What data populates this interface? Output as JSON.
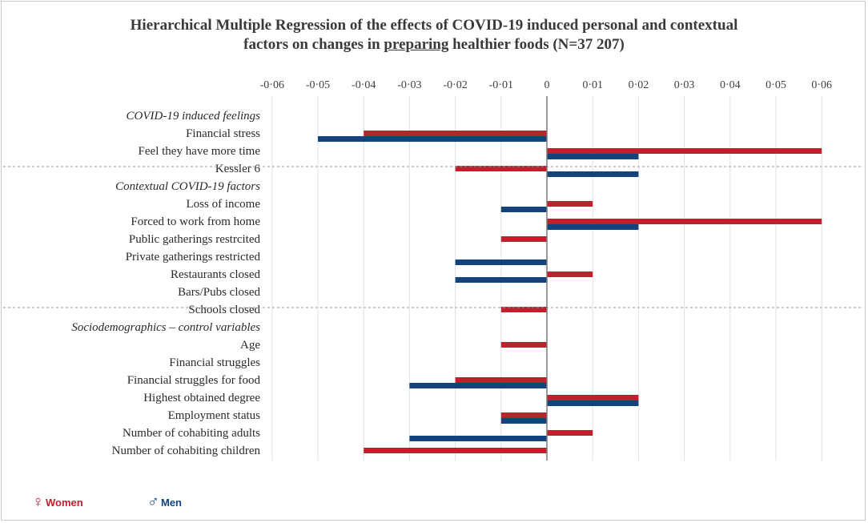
{
  "chart_data": {
    "type": "bar",
    "orientation": "horizontal",
    "title": {
      "prefix": "Hierarchical Multiple Regression of the effects of COVID-19 induced personal and contextual",
      "line2_before": "factors on changes in ",
      "underlined": "preparing",
      "line2_after": " healthier foods (N=37 207)"
    },
    "x_ticks": [
      "-0·06",
      "-0·05",
      "-0·04",
      "-0·03",
      "-0·02",
      "-0·01",
      "0",
      "0·01",
      "0·02",
      "0·03",
      "0·04",
      "0·05",
      "0·06"
    ],
    "x_tick_values": [
      -0.06,
      -0.05,
      -0.04,
      -0.03,
      -0.02,
      -0.01,
      0,
      0.01,
      0.02,
      0.03,
      0.04,
      0.05,
      0.06
    ],
    "xlim": [
      -0.06,
      0.06
    ],
    "grid": true,
    "legend_position": "bottom-left",
    "series": [
      {
        "name": "Women",
        "symbol": "♀",
        "color": "#c0202e"
      },
      {
        "name": "Men",
        "symbol": "♂",
        "color": "#14427a"
      }
    ],
    "groups": [
      {
        "header": "COVID-19 induced feelings",
        "rows": [
          {
            "label": "Financial stress",
            "women": -0.04,
            "men": -0.05
          },
          {
            "label": "Feel they have more time",
            "women": 0.06,
            "men": 0.02
          },
          {
            "label": "Kessler 6",
            "women": -0.02,
            "men": 0.02
          }
        ]
      },
      {
        "header": "Contextual COVID-19 factors",
        "rows": [
          {
            "label": "Loss of income",
            "women": 0.01,
            "men": -0.01
          },
          {
            "label": "Forced to work from home",
            "women": 0.06,
            "men": 0.02
          },
          {
            "label": "Public gatherings restrcited",
            "women": -0.01,
            "men": null
          },
          {
            "label": "Private gatherings restricted",
            "women": null,
            "men": -0.02
          },
          {
            "label": "Restaurants closed",
            "women": 0.01,
            "men": -0.02
          },
          {
            "label": "Bars/Pubs closed",
            "women": null,
            "men": null
          },
          {
            "label": "Schools closed",
            "women": -0.01,
            "men": null
          }
        ]
      },
      {
        "header": "Sociodemographics – control variables",
        "rows": [
          {
            "label": "Age",
            "women": -0.01,
            "men": null
          },
          {
            "label": "Financial struggles",
            "women": null,
            "men": null
          },
          {
            "label": "Financial struggles for food",
            "women": -0.02,
            "men": -0.03
          },
          {
            "label": "Highest obtained degree",
            "women": 0.02,
            "men": 0.02
          },
          {
            "label": "Employment status",
            "women": -0.01,
            "men": -0.01
          },
          {
            "label": "Number of cohabiting adults",
            "women": 0.01,
            "men": -0.03
          },
          {
            "label": "Number of cohabiting children",
            "women": -0.04,
            "men": null
          }
        ]
      }
    ]
  }
}
